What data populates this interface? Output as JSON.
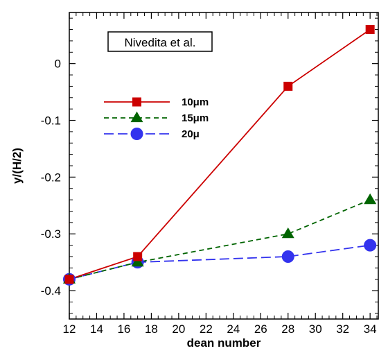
{
  "chart_data": {
    "type": "line",
    "title": "",
    "xlabel": "dean number",
    "ylabel": "y/(H/2)",
    "xlim": [
      12,
      34.6
    ],
    "ylim": [
      -0.45,
      0.09
    ],
    "xticks": [
      12,
      14,
      16,
      18,
      20,
      22,
      24,
      26,
      28,
      30,
      32,
      34
    ],
    "xtick_labels": [
      "12",
      "14",
      "16",
      "18",
      "20",
      "22",
      "24",
      "26",
      "28",
      "30",
      "32",
      "34"
    ],
    "yticks": [
      0,
      -0.1,
      -0.2,
      -0.3,
      -0.4
    ],
    "ytick_labels": [
      "0",
      "-0.1",
      "-0.2",
      "-0.3",
      "-0.4"
    ],
    "grid": false,
    "legend_position": "upper-left",
    "annotation": "Nivedita et al.",
    "series": [
      {
        "name": "10μm",
        "color": "#cc0000",
        "marker": "square",
        "line": "solid",
        "x": [
          12,
          17,
          28,
          34
        ],
        "y": [
          -0.38,
          -0.34,
          -0.04,
          0.06
        ]
      },
      {
        "name": "15μm",
        "color": "#006400",
        "marker": "triangle",
        "line": "dashed",
        "x": [
          12,
          17,
          28,
          34
        ],
        "y": [
          -0.38,
          -0.35,
          -0.3,
          -0.24
        ]
      },
      {
        "name": "20μ",
        "color": "#3333ee",
        "marker": "circle",
        "line": "longdash",
        "x": [
          12,
          17,
          28,
          34
        ],
        "y": [
          -0.38,
          -0.35,
          -0.34,
          -0.32
        ]
      }
    ]
  }
}
